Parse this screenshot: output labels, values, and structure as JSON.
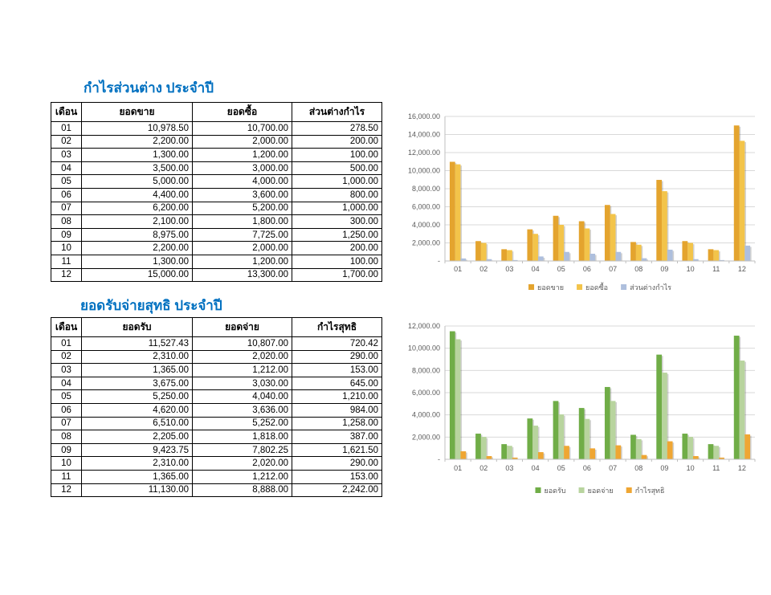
{
  "styles": {
    "title_color": "#0070C0",
    "table_border": "#000000",
    "axis_text_color": "#595959",
    "gridline_color": "#D9D9D9"
  },
  "section1": {
    "title": "กำไรส่วนต่าง ประจำปี",
    "table": {
      "headers": [
        "เดือน",
        "ยอดขาย",
        "ยอดซื้อ",
        "ส่วนต่างกำไร"
      ],
      "rows": [
        [
          "01",
          "10,978.50",
          "10,700.00",
          "278.50"
        ],
        [
          "02",
          "2,200.00",
          "2,000.00",
          "200.00"
        ],
        [
          "03",
          "1,300.00",
          "1,200.00",
          "100.00"
        ],
        [
          "04",
          "3,500.00",
          "3,000.00",
          "500.00"
        ],
        [
          "05",
          "5,000.00",
          "4,000.00",
          "1,000.00"
        ],
        [
          "06",
          "4,400.00",
          "3,600.00",
          "800.00"
        ],
        [
          "07",
          "6,200.00",
          "5,200.00",
          "1,000.00"
        ],
        [
          "08",
          "2,100.00",
          "1,800.00",
          "300.00"
        ],
        [
          "09",
          "8,975.00",
          "7,725.00",
          "1,250.00"
        ],
        [
          "10",
          "2,200.00",
          "2,000.00",
          "200.00"
        ],
        [
          "11",
          "1,300.00",
          "1,200.00",
          "100.00"
        ],
        [
          "12",
          "15,000.00",
          "13,300.00",
          "1,700.00"
        ]
      ]
    }
  },
  "section2": {
    "title": "ยอดรับจ่ายสุทธิ ประจำปี",
    "table": {
      "headers": [
        "เดือน",
        "ยอดรับ",
        "ยอดจ่าย",
        "กำไรสุทธิ"
      ],
      "rows": [
        [
          "01",
          "11,527.43",
          "10,807.00",
          "720.42"
        ],
        [
          "02",
          "2,310.00",
          "2,020.00",
          "290.00"
        ],
        [
          "03",
          "1,365.00",
          "1,212.00",
          "153.00"
        ],
        [
          "04",
          "3,675.00",
          "3,030.00",
          "645.00"
        ],
        [
          "05",
          "5,250.00",
          "4,040.00",
          "1,210.00"
        ],
        [
          "06",
          "4,620.00",
          "3,636.00",
          "984.00"
        ],
        [
          "07",
          "6,510.00",
          "5,252.00",
          "1,258.00"
        ],
        [
          "08",
          "2,205.00",
          "1,818.00",
          "387.00"
        ],
        [
          "09",
          "9,423.75",
          "7,802.25",
          "1,621.50"
        ],
        [
          "10",
          "2,310.00",
          "2,020.00",
          "290.00"
        ],
        [
          "11",
          "1,365.00",
          "1,212.00",
          "153.00"
        ],
        [
          "12",
          "11,130.00",
          "8,888.00",
          "2,242.00"
        ]
      ]
    }
  },
  "chart_data": [
    {
      "type": "bar",
      "categories": [
        "01",
        "02",
        "03",
        "04",
        "05",
        "06",
        "07",
        "08",
        "09",
        "10",
        "11",
        "12"
      ],
      "series": [
        {
          "name": "ยอดขาย",
          "color": "#E4A42E",
          "values": [
            10978.5,
            2200,
            1300,
            3500,
            5000,
            4400,
            6200,
            2100,
            8975,
            2200,
            1300,
            15000
          ]
        },
        {
          "name": "ยอดซื้อ",
          "color": "#F3C44A",
          "values": [
            10700,
            2000,
            1200,
            3000,
            4000,
            3600,
            5200,
            1800,
            7725,
            2000,
            1200,
            13300
          ]
        },
        {
          "name": "ส่วนต่างกำไร",
          "color": "#AEBFDD",
          "values": [
            278.5,
            200,
            100,
            500,
            1000,
            800,
            1000,
            300,
            1250,
            200,
            100,
            1700
          ]
        }
      ],
      "title": "",
      "xlabel": "",
      "ylabel": "",
      "ylim": [
        0,
        16000
      ],
      "ytick_step": 2000,
      "grid": true,
      "legend_position": "bottom"
    },
    {
      "type": "bar",
      "categories": [
        "01",
        "02",
        "03",
        "04",
        "05",
        "06",
        "07",
        "08",
        "09",
        "10",
        "11",
        "12"
      ],
      "series": [
        {
          "name": "ยอดรับ",
          "color": "#70AD47",
          "values": [
            11527.43,
            2310,
            1365,
            3675,
            5250,
            4620,
            6510,
            2205,
            9423.75,
            2310,
            1365,
            11130
          ]
        },
        {
          "name": "ยอดจ่าย",
          "color": "#B8D49E",
          "values": [
            10807,
            2020,
            1212,
            3030,
            4040,
            3636,
            5252,
            1818,
            7802.25,
            2020,
            1212,
            8888
          ]
        },
        {
          "name": "กำไรสุทธิ",
          "color": "#EFA633",
          "values": [
            720.42,
            290,
            153,
            645,
            1210,
            984,
            1258,
            387,
            1621.5,
            290,
            153,
            2242
          ]
        }
      ],
      "title": "",
      "xlabel": "",
      "ylabel": "",
      "ylim": [
        0,
        12000
      ],
      "ytick_step": 2000,
      "grid": true,
      "legend_position": "bottom"
    }
  ]
}
